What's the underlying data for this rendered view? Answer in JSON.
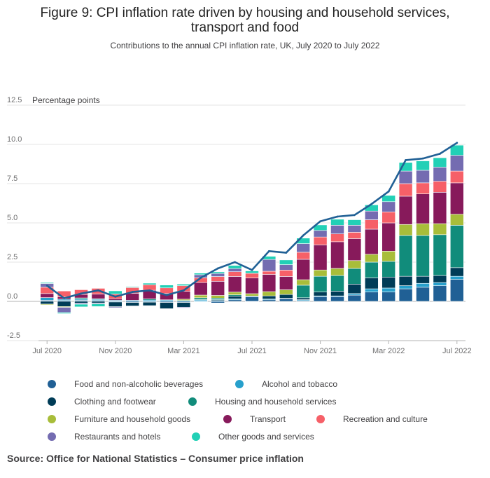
{
  "title_line1": "Figure 9: CPI inflation rate driven by housing and household services,",
  "title_line2": "transport and food",
  "subtitle": "Contributions to the annual CPI inflation rate, UK, July 2020 to July 2022",
  "source": "Source: Office for National Statistics – Consumer price inflation",
  "colors": {
    "food": "#206095",
    "alcohol": "#27a0cc",
    "clothing": "#003c57",
    "housing": "#118c7b",
    "furniture": "#a8bd3a",
    "transport": "#871a5b",
    "recreation": "#f66068",
    "restaurants": "#746cb1",
    "other": "#22d0b6",
    "line": "#206095"
  },
  "chart_data": {
    "type": "bar",
    "stacked": true,
    "ylabel": "Percentage points",
    "ylim": [
      -2.5,
      12.5
    ],
    "yticks": [
      -2.5,
      0.0,
      2.5,
      5.0,
      7.5,
      10.0,
      12.5
    ],
    "ytick_labels": [
      "-2.5",
      "0.0",
      "2.5",
      "5.0",
      "7.5",
      "10.0",
      "12.5"
    ],
    "grid": true,
    "legend_position": "bottom",
    "x_tick_labels": [
      "Jul 2020",
      "Nov 2020",
      "Mar 2021",
      "Jul 2021",
      "Nov 2021",
      "Mar 2022",
      "Jul 2022"
    ],
    "x_tick_index": [
      0,
      4,
      8,
      12,
      16,
      20,
      24
    ],
    "categories": [
      "Jul 2020",
      "Aug 2020",
      "Sep 2020",
      "Oct 2020",
      "Nov 2020",
      "Dec 2020",
      "Jan 2021",
      "Feb 2021",
      "Mar 2021",
      "Apr 2021",
      "May 2021",
      "Jun 2021",
      "Jul 2021",
      "Aug 2021",
      "Sep 2021",
      "Oct 2021",
      "Nov 2021",
      "Dec 2021",
      "Jan 2022",
      "Feb 2022",
      "Mar 2022",
      "Apr 2022",
      "May 2022",
      "Jun 2022",
      "Jul 2022"
    ],
    "series": [
      {
        "key": "food",
        "name": "Food and non-alcoholic beverages",
        "values": [
          0.07,
          0.06,
          0.07,
          0.06,
          -0.04,
          -0.07,
          -0.05,
          -0.07,
          -0.07,
          -0.02,
          -0.1,
          0.1,
          0.3,
          0.1,
          0.17,
          0.05,
          0.3,
          0.3,
          0.4,
          0.6,
          0.6,
          0.8,
          0.9,
          1.0,
          1.4
        ]
      },
      {
        "key": "alcohol",
        "name": "Alcohol and tobacco",
        "values": [
          0.17,
          0.08,
          0.07,
          0.07,
          0.07,
          0.07,
          0.08,
          0.08,
          0.06,
          0.08,
          0.05,
          0.06,
          0.04,
          0.05,
          0.03,
          0.06,
          0.05,
          0.05,
          0.1,
          0.2,
          0.25,
          0.2,
          0.25,
          0.2,
          0.2
        ]
      },
      {
        "key": "clothing",
        "name": "Clothing and footwear",
        "values": [
          -0.17,
          -0.33,
          -0.11,
          -0.1,
          -0.3,
          -0.22,
          -0.22,
          -0.4,
          -0.3,
          0.03,
          0.06,
          0.18,
          -0.02,
          0.2,
          0.24,
          0.12,
          0.25,
          0.3,
          0.6,
          0.7,
          0.7,
          0.6,
          0.45,
          0.45,
          0.55
        ]
      },
      {
        "key": "housing",
        "name": "Housing and household services",
        "values": [
          0.0,
          0.0,
          0.08,
          0.04,
          0.0,
          0.0,
          0.08,
          0.02,
          0.0,
          0.12,
          0.1,
          0.08,
          0.0,
          0.0,
          0.0,
          0.8,
          1.0,
          1.0,
          1.0,
          1.0,
          1.0,
          2.6,
          2.6,
          2.6,
          2.7
        ]
      },
      {
        "key": "furniture",
        "name": "Furniture and household goods",
        "values": [
          -0.05,
          -0.05,
          0.0,
          0.0,
          0.0,
          0.0,
          0.0,
          -0.02,
          0.08,
          0.17,
          0.17,
          0.17,
          0.15,
          0.27,
          0.3,
          0.35,
          0.4,
          0.45,
          0.5,
          0.5,
          0.65,
          0.7,
          0.75,
          0.7,
          0.7
        ]
      },
      {
        "key": "transport",
        "name": "Transport",
        "values": [
          0.26,
          0.15,
          0.22,
          0.3,
          0.1,
          0.45,
          0.55,
          0.4,
          0.5,
          0.8,
          0.9,
          1.0,
          1.0,
          1.1,
          0.85,
          1.3,
          1.6,
          1.7,
          1.4,
          1.6,
          1.8,
          1.8,
          1.9,
          2.0,
          2.0
        ]
      },
      {
        "key": "recreation",
        "name": "Recreation and culture",
        "values": [
          0.4,
          0.37,
          0.3,
          0.36,
          0.3,
          0.36,
          0.35,
          0.36,
          0.36,
          0.3,
          0.3,
          0.3,
          0.3,
          0.2,
          0.4,
          0.45,
          0.5,
          0.5,
          0.4,
          0.6,
          0.7,
          0.8,
          0.7,
          0.7,
          0.75
        ]
      },
      {
        "key": "restaurants",
        "name": "Restaurants and hotels",
        "values": [
          0.24,
          -0.33,
          -0.07,
          -0.06,
          -0.06,
          0.0,
          0.0,
          -0.02,
          -0.05,
          0.2,
          0.2,
          0.2,
          0.0,
          0.75,
          0.35,
          0.55,
          0.42,
          0.55,
          0.45,
          0.55,
          0.65,
          0.8,
          0.8,
          0.9,
          1.0
        ]
      },
      {
        "key": "other",
        "name": "Other goods and services",
        "values": [
          0.06,
          -0.07,
          -0.17,
          -0.17,
          0.2,
          0.05,
          0.1,
          0.18,
          0.1,
          0.1,
          0.1,
          0.2,
          0.15,
          0.2,
          0.3,
          0.35,
          0.35,
          0.38,
          0.35,
          0.4,
          0.4,
          0.55,
          0.6,
          0.6,
          0.65
        ]
      }
    ],
    "line": {
      "name": "CPI inflation rate",
      "values": [
        1.0,
        0.2,
        0.5,
        0.7,
        0.3,
        0.6,
        0.7,
        0.4,
        0.7,
        1.5,
        2.1,
        2.5,
        2.0,
        3.2,
        3.1,
        4.2,
        5.1,
        5.4,
        5.5,
        6.2,
        7.0,
        9.0,
        9.1,
        9.4,
        10.1
      ]
    }
  },
  "legend": [
    {
      "key": "food",
      "label": "Food and non-alcoholic beverages"
    },
    {
      "key": "alcohol",
      "label": "Alcohol and tobacco"
    },
    {
      "key": "clothing",
      "label": "Clothing and footwear"
    },
    {
      "key": "housing",
      "label": "Housing and household services"
    },
    {
      "key": "furniture",
      "label": "Furniture and household goods"
    },
    {
      "key": "transport",
      "label": "Transport"
    },
    {
      "key": "recreation",
      "label": "Recreation and culture"
    },
    {
      "key": "restaurants",
      "label": "Restaurants and hotels"
    },
    {
      "key": "other",
      "label": "Other goods and services"
    }
  ]
}
